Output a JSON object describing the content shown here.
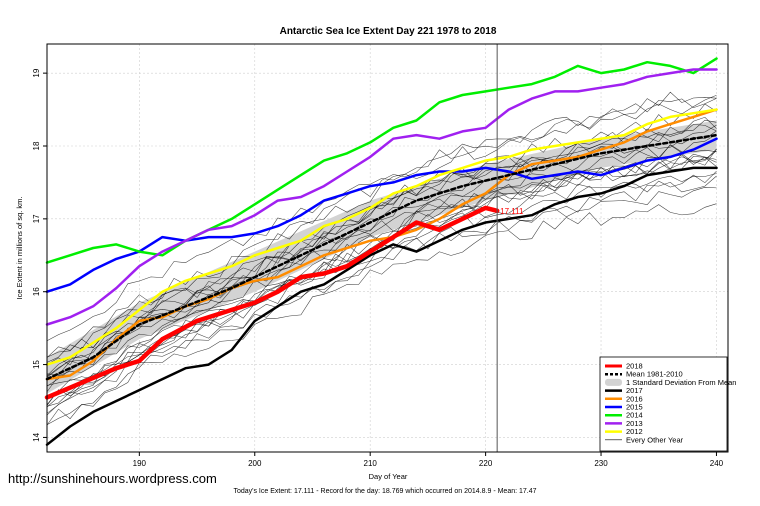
{
  "chart_data": {
    "type": "line",
    "title": "Antarctic Sea Ice Extent Day 221 1978 to 2018",
    "xlabel": "Day of Year",
    "ylabel": "Ice Extent in millions of sq. km.",
    "xlim": [
      182,
      241
    ],
    "ylim": [
      13.8,
      19.4
    ],
    "xticks": [
      190,
      200,
      210,
      220,
      230,
      240
    ],
    "yticks": [
      14,
      15,
      16,
      17,
      18,
      19
    ],
    "grid": true,
    "legend_position": "bottom-right",
    "current_day": 221,
    "current_value_label": "17.111",
    "footer": "Today's Ice Extent: 17.111  - Record for the day: 18.769 which occurred on 2014.8.9  - Mean: 17.47",
    "watermark": "http://sunshinehours.wordpress.com",
    "band": {
      "name": "1 Standard Deviation From Mean",
      "x": [
        182,
        190,
        200,
        210,
        220,
        230,
        240
      ],
      "upper": [
        15.1,
        15.85,
        16.55,
        17.25,
        17.75,
        18.1,
        18.35
      ],
      "lower": [
        14.6,
        15.35,
        16.0,
        16.75,
        17.25,
        17.7,
        17.95
      ],
      "color": "#d3d3d3"
    },
    "series": [
      {
        "name": "2018",
        "color": "#ff0000",
        "width": 4.5,
        "dash": "",
        "x": [
          182,
          185,
          188,
          190,
          192,
          195,
          198,
          200,
          202,
          204,
          206,
          208,
          210,
          212,
          214,
          216,
          218,
          220,
          221
        ],
        "y": [
          14.55,
          14.75,
          14.95,
          15.05,
          15.35,
          15.6,
          15.75,
          15.85,
          16.0,
          16.2,
          16.25,
          16.35,
          16.55,
          16.75,
          16.95,
          16.85,
          17.0,
          17.15,
          17.111
        ]
      },
      {
        "name": "Mean 1981-2010",
        "color": "#000000",
        "width": 2.5,
        "dash": "4,3",
        "x": [
          182,
          186,
          190,
          194,
          198,
          202,
          206,
          210,
          214,
          218,
          222,
          226,
          230,
          234,
          238,
          240
        ],
        "y": [
          14.8,
          15.1,
          15.55,
          15.8,
          16.05,
          16.35,
          16.65,
          16.95,
          17.25,
          17.45,
          17.6,
          17.75,
          17.9,
          18.0,
          18.1,
          18.15
        ]
      },
      {
        "name": "2017",
        "color": "#000000",
        "width": 2.5,
        "dash": "",
        "x": [
          182,
          184,
          186,
          188,
          190,
          192,
          194,
          196,
          198,
          200,
          202,
          204,
          206,
          208,
          210,
          212,
          214,
          216,
          218,
          220,
          222,
          224,
          226,
          228,
          230,
          232,
          234,
          236,
          238,
          240
        ],
        "y": [
          13.9,
          14.15,
          14.35,
          14.5,
          14.65,
          14.8,
          14.95,
          15.0,
          15.2,
          15.6,
          15.8,
          16.0,
          16.1,
          16.3,
          16.5,
          16.65,
          16.55,
          16.7,
          16.85,
          16.95,
          17.0,
          17.05,
          17.2,
          17.3,
          17.35,
          17.45,
          17.6,
          17.65,
          17.7,
          17.7
        ]
      },
      {
        "name": "2016",
        "color": "#ff8c00",
        "width": 2.5,
        "dash": "",
        "x": [
          182,
          184,
          186,
          188,
          190,
          192,
          194,
          196,
          198,
          200,
          202,
          204,
          206,
          208,
          210,
          212,
          214,
          216,
          218,
          220,
          222,
          224,
          226,
          228,
          230,
          232,
          234,
          236,
          238,
          240
        ],
        "y": [
          14.8,
          14.85,
          15.05,
          15.35,
          15.6,
          15.65,
          15.8,
          15.9,
          16.05,
          16.15,
          16.2,
          16.35,
          16.5,
          16.6,
          16.7,
          16.75,
          16.85,
          17.0,
          17.2,
          17.35,
          17.6,
          17.75,
          17.8,
          17.85,
          17.95,
          18.05,
          18.2,
          18.3,
          18.4,
          18.5
        ]
      },
      {
        "name": "2015",
        "color": "#0000ff",
        "width": 2.5,
        "dash": "",
        "x": [
          182,
          184,
          186,
          188,
          190,
          192,
          194,
          196,
          198,
          200,
          202,
          204,
          206,
          208,
          210,
          212,
          214,
          216,
          218,
          220,
          222,
          224,
          226,
          228,
          230,
          232,
          234,
          236,
          238,
          240
        ],
        "y": [
          16.0,
          16.1,
          16.3,
          16.45,
          16.55,
          16.75,
          16.7,
          16.75,
          16.75,
          16.8,
          16.9,
          17.05,
          17.25,
          17.35,
          17.45,
          17.5,
          17.6,
          17.65,
          17.65,
          17.7,
          17.65,
          17.55,
          17.6,
          17.65,
          17.6,
          17.7,
          17.8,
          17.85,
          17.95,
          18.1
        ]
      },
      {
        "name": "2014",
        "color": "#00ee00",
        "width": 2.5,
        "dash": "",
        "x": [
          182,
          184,
          186,
          188,
          190,
          192,
          194,
          196,
          198,
          200,
          202,
          204,
          206,
          208,
          210,
          212,
          214,
          216,
          218,
          220,
          222,
          224,
          226,
          228,
          230,
          232,
          234,
          236,
          238,
          240
        ],
        "y": [
          16.4,
          16.5,
          16.6,
          16.65,
          16.55,
          16.5,
          16.7,
          16.85,
          17.0,
          17.2,
          17.4,
          17.6,
          17.8,
          17.9,
          18.05,
          18.25,
          18.35,
          18.6,
          18.7,
          18.75,
          18.8,
          18.85,
          18.95,
          19.1,
          19.0,
          19.05,
          19.15,
          19.1,
          19.0,
          19.2
        ]
      },
      {
        "name": "2013",
        "color": "#a020f0",
        "width": 2.5,
        "dash": "",
        "x": [
          182,
          184,
          186,
          188,
          190,
          192,
          194,
          196,
          198,
          200,
          202,
          204,
          206,
          208,
          210,
          212,
          214,
          216,
          218,
          220,
          222,
          224,
          226,
          228,
          230,
          232,
          234,
          236,
          238,
          240
        ],
        "y": [
          15.55,
          15.65,
          15.8,
          16.05,
          16.35,
          16.55,
          16.7,
          16.85,
          16.9,
          17.05,
          17.25,
          17.3,
          17.45,
          17.65,
          17.85,
          18.1,
          18.15,
          18.1,
          18.2,
          18.25,
          18.5,
          18.65,
          18.75,
          18.75,
          18.8,
          18.85,
          18.95,
          19.0,
          19.05,
          19.05
        ]
      },
      {
        "name": "2012",
        "color": "#ffff00",
        "width": 2.5,
        "dash": "",
        "x": [
          182,
          184,
          186,
          188,
          190,
          192,
          194,
          196,
          198,
          200,
          202,
          204,
          206,
          208,
          210,
          212,
          214,
          216,
          218,
          220,
          222,
          224,
          226,
          228,
          230,
          232,
          234,
          236,
          238,
          240
        ],
        "y": [
          15.0,
          15.1,
          15.3,
          15.5,
          15.75,
          16.0,
          16.15,
          16.25,
          16.35,
          16.5,
          16.6,
          16.7,
          16.9,
          17.0,
          17.15,
          17.35,
          17.45,
          17.6,
          17.7,
          17.8,
          17.85,
          17.95,
          18.0,
          18.05,
          18.1,
          18.15,
          18.3,
          18.4,
          18.45,
          18.5
        ]
      }
    ],
    "other_years_label": "Every Other Year"
  }
}
